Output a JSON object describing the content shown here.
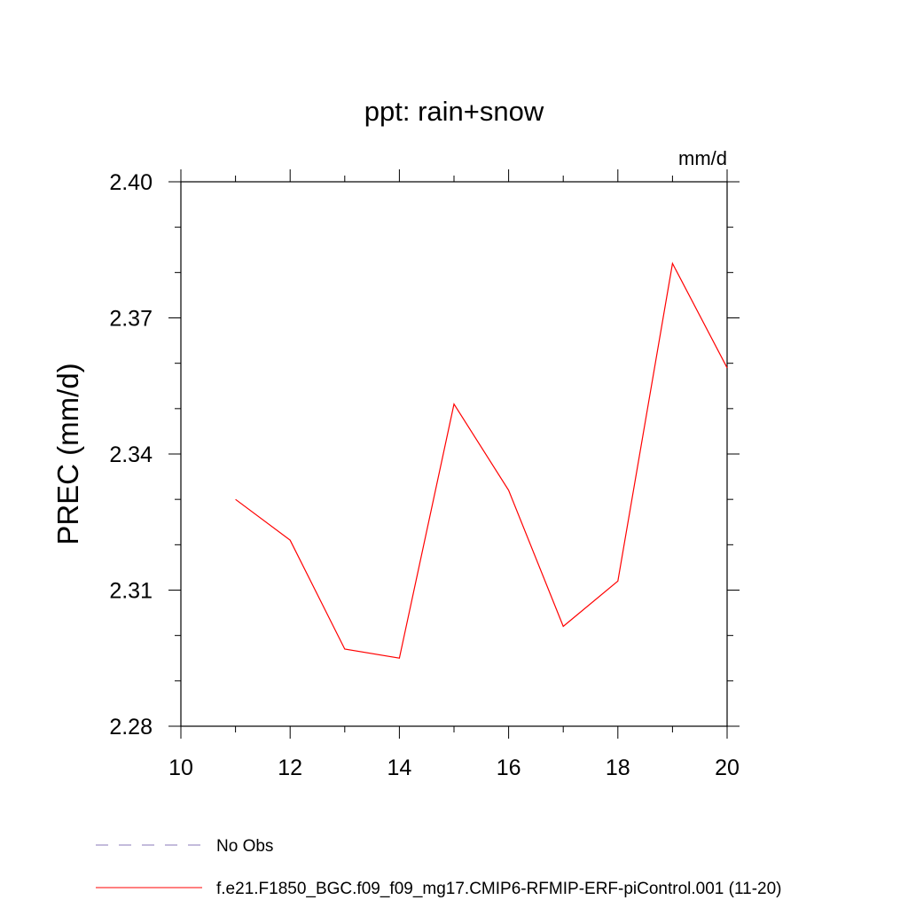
{
  "chart_data": {
    "type": "line",
    "title": "ppt: rain+snow",
    "units_label": "mm/d",
    "ylabel": "PREC  (mm/d)",
    "xlabel": "",
    "xlim": [
      10,
      20
    ],
    "ylim": [
      2.28,
      2.4
    ],
    "x_ticks": [
      10,
      12,
      14,
      16,
      18,
      20
    ],
    "x_tick_labels": [
      "10",
      "12",
      "14",
      "16",
      "18",
      "20"
    ],
    "y_ticks": [
      2.28,
      2.31,
      2.34,
      2.37,
      2.4
    ],
    "y_tick_labels": [
      "2.28",
      "2.31",
      "2.34",
      "2.37",
      "2.40"
    ],
    "x_minor_step": 1,
    "y_minor_step": 0.01,
    "grid": false,
    "series": [
      {
        "name": "f.e21.F1850_BGC.f09_f09_mg17.CMIP6-RFMIP-ERF-piControl.001 (11-20)",
        "color": "#ff0000",
        "style": "solid",
        "x": [
          11,
          12,
          13,
          14,
          15,
          16,
          17,
          18,
          19,
          20
        ],
        "values": [
          2.33,
          2.321,
          2.297,
          2.295,
          2.351,
          2.332,
          2.302,
          2.312,
          2.382,
          2.359
        ]
      }
    ],
    "legend": {
      "placement": "bottom-left",
      "entries": [
        {
          "label": "No Obs",
          "color": "#8878b8",
          "style": "dashed"
        },
        {
          "label": "f.e21.F1850_BGC.f09_f09_mg17.CMIP6-RFMIP-ERF-piControl.001 (11-20)",
          "color": "#ff0000",
          "style": "solid"
        }
      ]
    }
  }
}
